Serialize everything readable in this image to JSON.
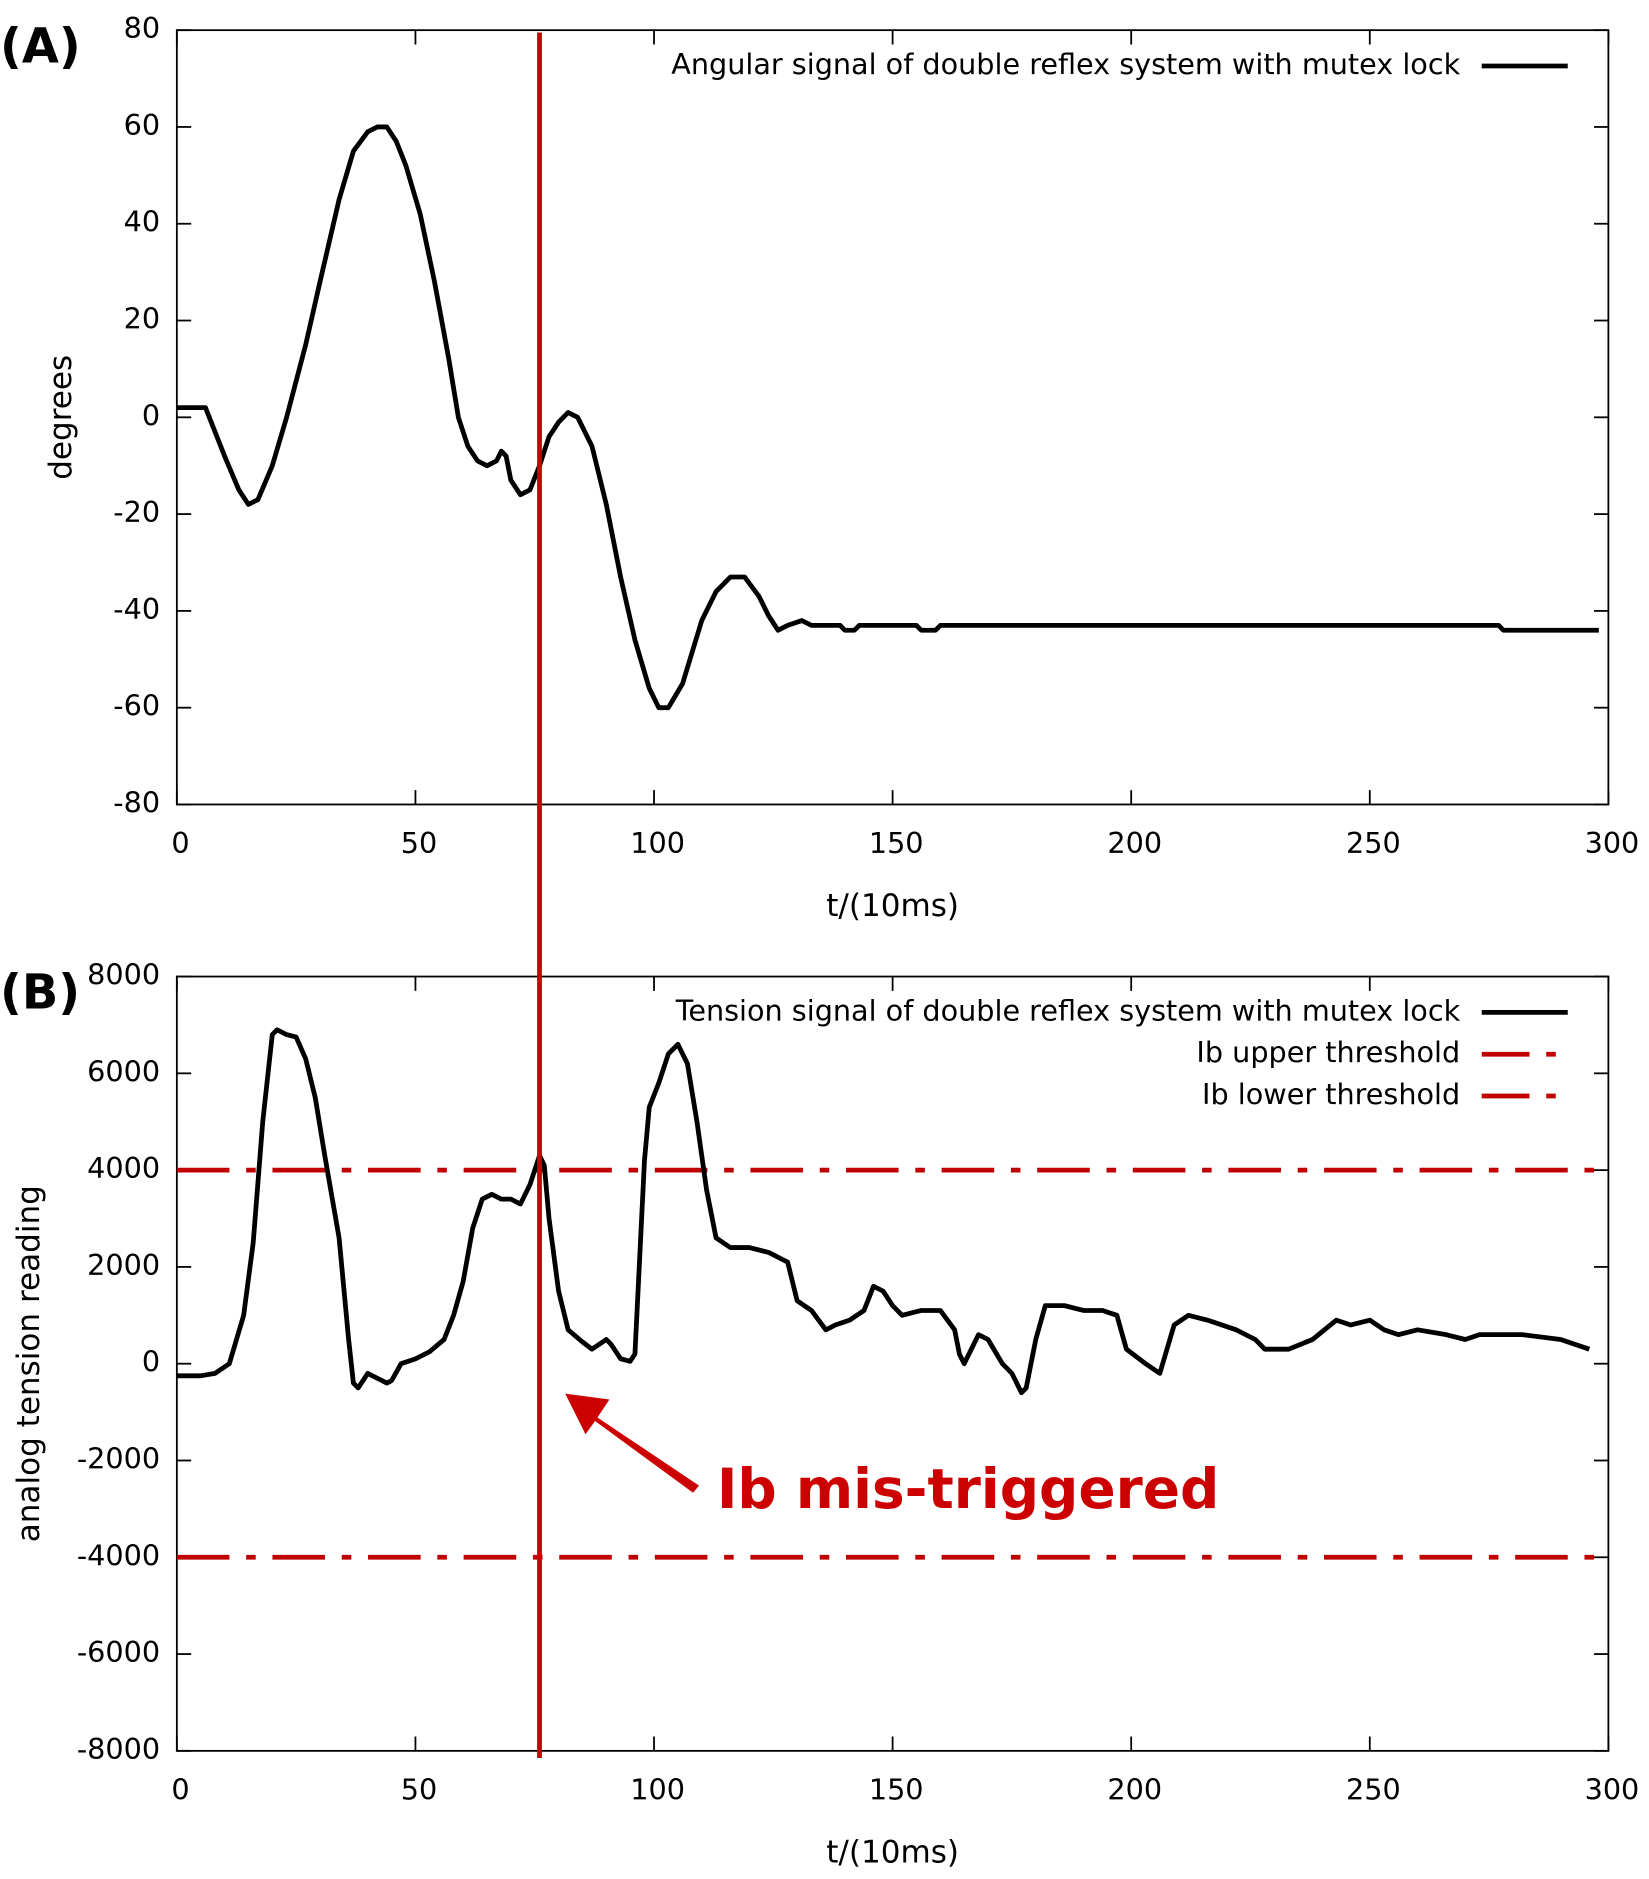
{
  "chart_data": [
    {
      "type": "line",
      "panel_label": "(A)",
      "ylabel": "degrees",
      "xlabel": "t/(10ms)",
      "xlim": [
        0,
        300
      ],
      "xticks": [
        0,
        50,
        100,
        150,
        200,
        250,
        300
      ],
      "ylim": [
        -80,
        80
      ],
      "yticks": [
        -80,
        -60,
        -40,
        -20,
        0,
        20,
        40,
        60,
        80
      ],
      "x": [
        0,
        6,
        10,
        13,
        15,
        17,
        20,
        23,
        27,
        30,
        34,
        37,
        40,
        42,
        44,
        46,
        48,
        51,
        54,
        57,
        59,
        61,
        63,
        65,
        67,
        68,
        69,
        70,
        72,
        74,
        76,
        78,
        80,
        82,
        84,
        87,
        90,
        93,
        96,
        99,
        101,
        103,
        106,
        110,
        113,
        116,
        119,
        122,
        124,
        126,
        128,
        131,
        133,
        139,
        140,
        142,
        143,
        155,
        156,
        159,
        160,
        277,
        278,
        298
      ],
      "series": [
        {
          "name": "Angular signal of double reflex system with mutex lock",
          "color": "#000000",
          "values": [
            2,
            2,
            -8,
            -15,
            -18,
            -17,
            -10,
            0,
            15,
            28,
            45,
            55,
            59,
            60,
            60,
            57,
            52,
            42,
            28,
            12,
            0,
            -6,
            -9,
            -10,
            -9,
            -7,
            -8,
            -13,
            -16,
            -15,
            -10,
            -4,
            -1,
            1,
            0,
            -6,
            -18,
            -33,
            -46,
            -56,
            -60,
            -60,
            -55,
            -42,
            -36,
            -33,
            -33,
            -37,
            -41,
            -44,
            -43,
            -42,
            -43,
            -43,
            -44,
            -44,
            -43,
            -43,
            -44,
            -44,
            -43,
            -43,
            -44,
            -44
          ]
        }
      ],
      "thresholds": []
    },
    {
      "type": "line",
      "panel_label": "(B)",
      "ylabel": "analog tension reading",
      "xlabel": "t/(10ms)",
      "xlim": [
        0,
        300
      ],
      "xticks": [
        0,
        50,
        100,
        150,
        200,
        250,
        300
      ],
      "ylim": [
        -8000,
        8000
      ],
      "yticks": [
        -8000,
        -6000,
        -4000,
        -2000,
        0,
        2000,
        4000,
        6000,
        8000
      ],
      "x": [
        0,
        5,
        8,
        11,
        14,
        16,
        18,
        20,
        21,
        23,
        25,
        27,
        29,
        31,
        34,
        36,
        37,
        38,
        40,
        42,
        44,
        45,
        47,
        50,
        53,
        56,
        58,
        60,
        62,
        64,
        66,
        68,
        70,
        72,
        74,
        76,
        77,
        78,
        80,
        82,
        85,
        87,
        90,
        91,
        93,
        95,
        96,
        97,
        98,
        99,
        101,
        103,
        105,
        107,
        109,
        111,
        113,
        116,
        120,
        124,
        128,
        130,
        133,
        136,
        138,
        141,
        144,
        146,
        148,
        150,
        152,
        156,
        160,
        163,
        164,
        165,
        167,
        168,
        170,
        173,
        175,
        177,
        178,
        180,
        182,
        186,
        190,
        194,
        197,
        199,
        203,
        206,
        209,
        212,
        216,
        222,
        226,
        228,
        233,
        238,
        243,
        246,
        250,
        253,
        256,
        260,
        266,
        270,
        273,
        282,
        290,
        296
      ],
      "series": [
        {
          "name": "Tension signal of double reflex system with mutex lock",
          "color": "#000000",
          "values": [
            -250,
            -250,
            -200,
            0,
            1000,
            2500,
            5000,
            6800,
            6900,
            6800,
            6750,
            6300,
            5500,
            4300,
            2600,
            500,
            -400,
            -500,
            -200,
            -300,
            -400,
            -350,
            0,
            100,
            250,
            500,
            1000,
            1700,
            2800,
            3400,
            3500,
            3400,
            3400,
            3300,
            3700,
            4300,
            4100,
            3000,
            1500,
            700,
            450,
            300,
            500,
            400,
            100,
            50,
            200,
            2200,
            4200,
            5300,
            5800,
            6400,
            6600,
            6200,
            5000,
            3600,
            2600,
            2400,
            2400,
            2300,
            2100,
            1300,
            1100,
            700,
            800,
            900,
            1100,
            1600,
            1500,
            1200,
            1000,
            1100,
            1100,
            700,
            200,
            0,
            400,
            600,
            500,
            0,
            -200,
            -600,
            -500,
            500,
            1200,
            1200,
            1100,
            1100,
            1000,
            300,
            0,
            -200,
            800,
            1000,
            900,
            700,
            500,
            300,
            300,
            500,
            900,
            800,
            900,
            700,
            600,
            700,
            600,
            500,
            600,
            600,
            500,
            300
          ]
        }
      ],
      "thresholds": [
        {
          "name": "Ib upper threshold",
          "value": 4000,
          "color": "#c00000"
        },
        {
          "name": "Ib lower threshold",
          "value": -4000,
          "color": "#c00000"
        }
      ]
    }
  ],
  "annotation": {
    "text": "Ib mis-triggered",
    "x": 76,
    "color": "#cc0000"
  }
}
